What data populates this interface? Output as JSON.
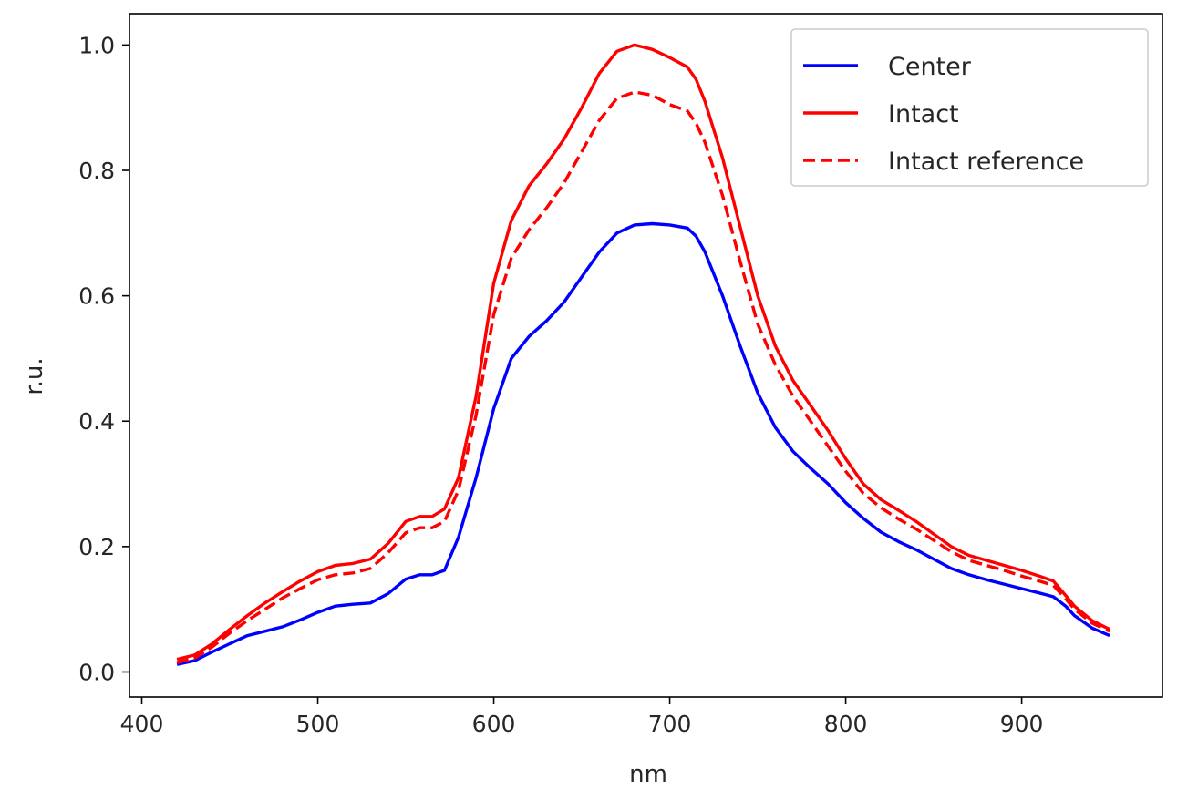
{
  "chart_data": {
    "type": "line",
    "title": "",
    "xlabel": "nm",
    "ylabel": "r.u.",
    "xlim": [
      393,
      980
    ],
    "ylim": [
      -0.04,
      1.05
    ],
    "xticks": [
      400,
      500,
      600,
      700,
      800,
      900
    ],
    "yticks": [
      0.0,
      0.2,
      0.4,
      0.6,
      0.8,
      1.0
    ],
    "xtick_labels": [
      "400",
      "500",
      "600",
      "700",
      "800",
      "900"
    ],
    "ytick_labels": [
      "0.0",
      "0.2",
      "0.4",
      "0.6",
      "0.8",
      "1.0"
    ],
    "legend_position": "top-right",
    "grid": false,
    "series": [
      {
        "name": "Center",
        "color": "#0000ff",
        "style": "solid",
        "x": [
          420,
          430,
          440,
          450,
          460,
          470,
          480,
          490,
          500,
          510,
          520,
          530,
          540,
          550,
          558,
          565,
          572,
          580,
          590,
          600,
          610,
          620,
          630,
          640,
          650,
          660,
          670,
          680,
          690,
          700,
          710,
          715,
          720,
          730,
          740,
          750,
          760,
          770,
          780,
          790,
          800,
          810,
          820,
          830,
          840,
          850,
          860,
          870,
          880,
          890,
          900,
          910,
          918,
          925,
          930,
          940,
          950
        ],
        "y": [
          0.012,
          0.018,
          0.032,
          0.045,
          0.058,
          0.065,
          0.072,
          0.083,
          0.095,
          0.105,
          0.108,
          0.11,
          0.125,
          0.148,
          0.155,
          0.155,
          0.162,
          0.215,
          0.31,
          0.42,
          0.5,
          0.535,
          0.56,
          0.59,
          0.63,
          0.67,
          0.7,
          0.713,
          0.715,
          0.713,
          0.708,
          0.695,
          0.67,
          0.6,
          0.52,
          0.445,
          0.39,
          0.352,
          0.325,
          0.3,
          0.27,
          0.245,
          0.223,
          0.208,
          0.195,
          0.18,
          0.165,
          0.155,
          0.147,
          0.14,
          0.133,
          0.126,
          0.12,
          0.105,
          0.09,
          0.07,
          0.058
        ]
      },
      {
        "name": "Intact",
        "color": "#ff0000",
        "style": "solid",
        "x": [
          420,
          430,
          440,
          450,
          460,
          470,
          480,
          490,
          500,
          510,
          520,
          530,
          540,
          550,
          558,
          565,
          572,
          580,
          590,
          600,
          610,
          620,
          630,
          640,
          650,
          660,
          670,
          680,
          690,
          700,
          710,
          715,
          720,
          730,
          740,
          750,
          760,
          770,
          780,
          790,
          800,
          810,
          820,
          830,
          840,
          850,
          860,
          870,
          880,
          890,
          900,
          910,
          918,
          925,
          930,
          940,
          950
        ],
        "y": [
          0.02,
          0.027,
          0.045,
          0.068,
          0.09,
          0.11,
          0.128,
          0.145,
          0.16,
          0.17,
          0.173,
          0.18,
          0.205,
          0.24,
          0.248,
          0.248,
          0.26,
          0.31,
          0.44,
          0.62,
          0.72,
          0.775,
          0.81,
          0.85,
          0.9,
          0.955,
          0.99,
          1.0,
          0.993,
          0.98,
          0.965,
          0.945,
          0.91,
          0.82,
          0.71,
          0.6,
          0.52,
          0.465,
          0.425,
          0.385,
          0.34,
          0.3,
          0.275,
          0.258,
          0.24,
          0.22,
          0.2,
          0.186,
          0.178,
          0.17,
          0.162,
          0.153,
          0.145,
          0.122,
          0.105,
          0.082,
          0.068
        ]
      },
      {
        "name": "Intact reference",
        "color": "#ff0000",
        "style": "dashed",
        "x": [
          420,
          430,
          440,
          450,
          460,
          470,
          480,
          490,
          500,
          510,
          520,
          530,
          540,
          550,
          558,
          565,
          572,
          580,
          590,
          600,
          610,
          620,
          630,
          640,
          650,
          660,
          670,
          680,
          690,
          700,
          710,
          715,
          720,
          730,
          740,
          750,
          760,
          770,
          780,
          790,
          800,
          810,
          820,
          830,
          840,
          850,
          860,
          870,
          880,
          890,
          900,
          910,
          918,
          925,
          930,
          940,
          950
        ],
        "y": [
          0.015,
          0.022,
          0.04,
          0.062,
          0.082,
          0.1,
          0.118,
          0.133,
          0.147,
          0.155,
          0.158,
          0.165,
          0.19,
          0.222,
          0.23,
          0.23,
          0.24,
          0.29,
          0.41,
          0.57,
          0.66,
          0.705,
          0.74,
          0.78,
          0.83,
          0.88,
          0.915,
          0.925,
          0.92,
          0.905,
          0.895,
          0.875,
          0.845,
          0.76,
          0.655,
          0.555,
          0.49,
          0.44,
          0.4,
          0.36,
          0.32,
          0.285,
          0.262,
          0.244,
          0.228,
          0.21,
          0.192,
          0.178,
          0.17,
          0.162,
          0.153,
          0.145,
          0.138,
          0.117,
          0.1,
          0.078,
          0.065
        ]
      }
    ]
  }
}
